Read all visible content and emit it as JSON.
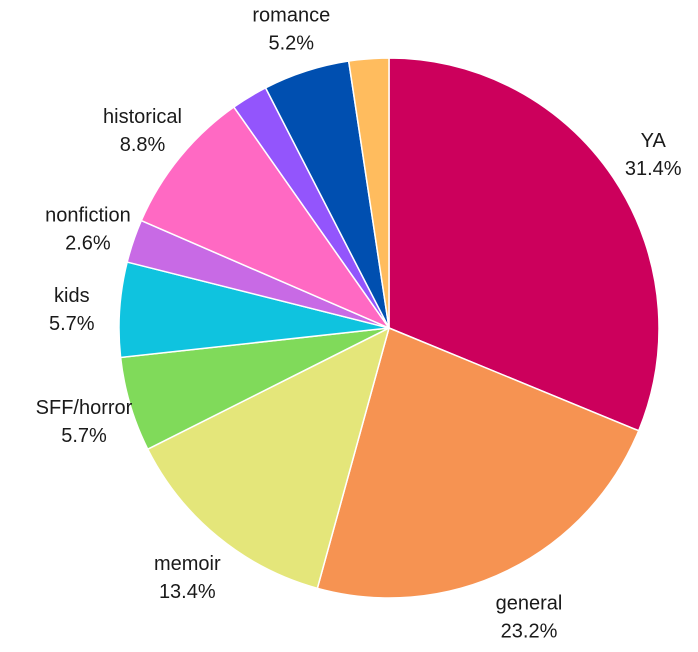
{
  "chart_data": {
    "type": "pie",
    "title": "",
    "start": "12 o'clock",
    "direction": "clockwise",
    "slices": [
      {
        "label": "YA",
        "percent_label": "31.4%",
        "value": 31.4,
        "color": "#cc005c"
      },
      {
        "label": "general",
        "percent_label": "23.2%",
        "value": 23.2,
        "color": "#f69352"
      },
      {
        "label": "memoir",
        "percent_label": "13.4%",
        "value": 13.4,
        "color": "#e4e67a"
      },
      {
        "label": "SFF/horror",
        "percent_label": "5.7%",
        "value": 5.7,
        "color": "#80da5a"
      },
      {
        "label": "kids",
        "percent_label": "5.7%",
        "value": 5.7,
        "color": "#0fc3df"
      },
      {
        "label": "nonfiction",
        "percent_label": "2.6%",
        "value": 2.6,
        "color": "#c86ae5"
      },
      {
        "label": "historical",
        "percent_label": "8.8%",
        "value": 8.8,
        "color": "#ff69c3"
      },
      {
        "label": "",
        "percent_label": "",
        "value": 2.2,
        "color": "#9355fc"
      },
      {
        "label": "romance",
        "percent_label": "5.2%",
        "value": 5.2,
        "color": "#004fb0"
      },
      {
        "label": "",
        "percent_label": "",
        "value": 2.4,
        "color": "#ffbc5e"
      }
    ]
  }
}
